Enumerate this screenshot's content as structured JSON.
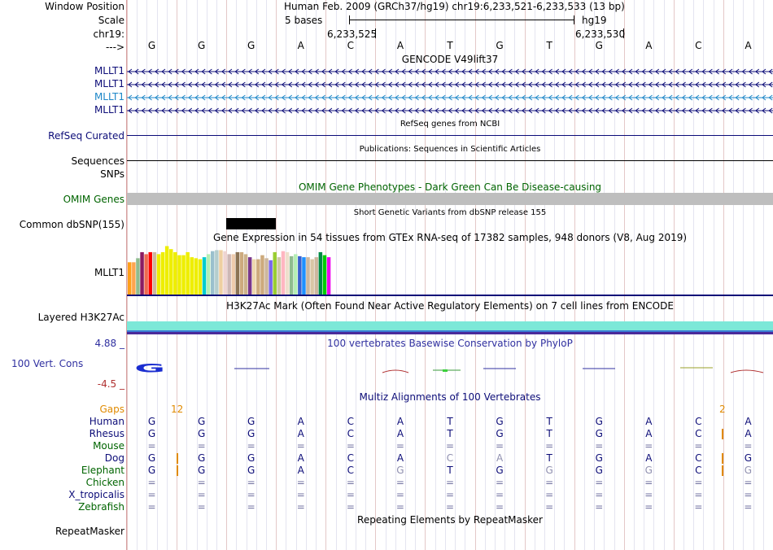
{
  "header": {
    "window_position_label": "Window Position",
    "scale_label": "Scale",
    "chrom_label": "chr19:",
    "strand_label": "--->",
    "title": "Human Feb. 2009 (GRCh37/hg19)   chr19:6,233,521-6,233,533 (13 bp)",
    "scale_text": "5 bases",
    "assembly": "hg19",
    "coord_left": "6,233,525",
    "coord_right": "6,233,530"
  },
  "bases": [
    "G",
    "G",
    "G",
    "A",
    "C",
    "A",
    "T",
    "G",
    "T",
    "G",
    "A",
    "C",
    "A"
  ],
  "gencode": {
    "title": "GENCODE V49lift37",
    "transcripts": [
      {
        "label": "MLLT1",
        "color": "#0c0c78"
      },
      {
        "label": "MLLT1",
        "color": "#0c0c78"
      },
      {
        "label": "MLLT1",
        "color": "#1d87c8"
      },
      {
        "label": "MLLT1",
        "color": "#0c0c78"
      }
    ]
  },
  "refseq": {
    "title": "RefSeq genes from NCBI",
    "label": "RefSeq Curated"
  },
  "publications": {
    "title": "Publications: Sequences in Scientific Articles",
    "label": "Sequences"
  },
  "snps_label": "SNPs",
  "omim": {
    "title": "OMIM Gene Phenotypes - Dark Green Can Be Disease-causing",
    "label": "OMIM Genes"
  },
  "dbsnp": {
    "title": "Short Genetic Variants from dbSNP release 155",
    "label": "Common dbSNP(155)"
  },
  "gtex": {
    "title": "Gene Expression in 54 tissues from GTEx RNA-seq of 17382 samples, 948 donors (V8, Aug 2019)",
    "label": "MLLT1",
    "bars": [
      {
        "color": "#ff9f1a",
        "h": 0.64
      },
      {
        "color": "#ffa54f",
        "h": 0.64
      },
      {
        "color": "#8fbc8f",
        "h": 0.72
      },
      {
        "color": "#8b1c62",
        "h": 0.84
      },
      {
        "color": "#ee6a50",
        "h": 0.8
      },
      {
        "color": "#ff0000",
        "h": 0.84
      },
      {
        "color": "#cdb79e",
        "h": 0.84
      },
      {
        "color": "#eeee00",
        "h": 0.8
      },
      {
        "color": "#eeee00",
        "h": 0.84
      },
      {
        "color": "#eeee00",
        "h": 0.96
      },
      {
        "color": "#eeee00",
        "h": 0.9
      },
      {
        "color": "#eeee00",
        "h": 0.84
      },
      {
        "color": "#eeee00",
        "h": 0.78
      },
      {
        "color": "#eeee00",
        "h": 0.78
      },
      {
        "color": "#eeee00",
        "h": 0.84
      },
      {
        "color": "#eeee00",
        "h": 0.74
      },
      {
        "color": "#eeee00",
        "h": 0.72
      },
      {
        "color": "#eeee00",
        "h": 0.7
      },
      {
        "color": "#00cdcd",
        "h": 0.74
      },
      {
        "color": "#b4eeb4",
        "h": 0.8
      },
      {
        "color": "#9ac0cd",
        "h": 0.86
      },
      {
        "color": "#b4cdcd",
        "h": 0.88
      },
      {
        "color": "#eecfa1",
        "h": 0.88
      },
      {
        "color": "#eed5d2",
        "h": 0.86
      },
      {
        "color": "#cdb7b5",
        "h": 0.8
      },
      {
        "color": "#eecbad",
        "h": 0.8
      },
      {
        "color": "#8b7355",
        "h": 0.84
      },
      {
        "color": "#cdaa7d",
        "h": 0.84
      },
      {
        "color": "#cdb38b",
        "h": 0.8
      },
      {
        "color": "#7a378b",
        "h": 0.74
      },
      {
        "color": "#eed8ae",
        "h": 0.7
      },
      {
        "color": "#cdaa7d",
        "h": 0.7
      },
      {
        "color": "#cdaa7d",
        "h": 0.78
      },
      {
        "color": "#cdb79e",
        "h": 0.72
      },
      {
        "color": "#7a67ee",
        "h": 0.68
      },
      {
        "color": "#9acd32",
        "h": 0.84
      },
      {
        "color": "#cdc9a5",
        "h": 0.74
      },
      {
        "color": "#ffb6c1",
        "h": 0.86
      },
      {
        "color": "#eedfcc",
        "h": 0.84
      },
      {
        "color": "#8fbc8f",
        "h": 0.76
      },
      {
        "color": "#b4eeb4",
        "h": 0.8
      },
      {
        "color": "#3a5fcd",
        "h": 0.76
      },
      {
        "color": "#1e90ff",
        "h": 0.74
      },
      {
        "color": "#cdb79e",
        "h": 0.74
      },
      {
        "color": "#d9c6a5",
        "h": 0.7
      },
      {
        "color": "#cdb79e",
        "h": 0.74
      },
      {
        "color": "#008b45",
        "h": 0.84
      },
      {
        "color": "#00cd00",
        "h": 0.78
      },
      {
        "color": "#ee00ee",
        "h": 0.74
      }
    ]
  },
  "h3k27ac": {
    "title": "H3K27Ac Mark (Often Found Near Active Regulatory Elements) on 7 cell lines from ENCODE",
    "label": "Layered H3K27Ac"
  },
  "phylop": {
    "title": "100 vertebrates Basewise Conservation by PhyloP",
    "label": "100 Vert. Cons",
    "max_label": "4.88 _",
    "min_label": "-4.5 _"
  },
  "multiz": {
    "title": "Multiz Alignments of 100 Vertebrates",
    "gaps_label": "Gaps",
    "gap_left": "12",
    "gap_right": "2",
    "species": [
      {
        "name": "Human",
        "color": "#0c0c78",
        "bases": [
          "G",
          "G",
          "G",
          "A",
          "C",
          "A",
          "T",
          "G",
          "T",
          "G",
          "A",
          "C",
          "A"
        ]
      },
      {
        "name": "Rhesus",
        "color": "#0c0c78",
        "bases": [
          "G",
          "G",
          "G",
          "A",
          "C",
          "A",
          "T",
          "G",
          "T",
          "G",
          "A",
          "C",
          "A"
        ]
      },
      {
        "name": "Mouse",
        "color": "#006400",
        "bases": [
          "=",
          "=",
          "=",
          "=",
          "=",
          "=",
          "=",
          "=",
          "=",
          "=",
          "=",
          "=",
          "="
        ]
      },
      {
        "name": "Dog",
        "color": "#0c0c78",
        "bases": [
          "G",
          "G",
          "G",
          "A",
          "C",
          "A",
          "C",
          "A",
          "T",
          "G",
          "A",
          "C",
          "G"
        ]
      },
      {
        "name": "Elephant",
        "color": "#006400",
        "bases": [
          "G",
          "G",
          "G",
          "A",
          "C",
          "G",
          "T",
          "G",
          "G",
          "G",
          "G",
          "C",
          "G"
        ]
      },
      {
        "name": "Chicken",
        "color": "#006400",
        "bases": [
          "=",
          "=",
          "=",
          "=",
          "=",
          "=",
          "=",
          "=",
          "=",
          "=",
          "=",
          "=",
          "="
        ]
      },
      {
        "name": "X_tropicalis",
        "color": "#0c0c78",
        "bases": [
          "=",
          "=",
          "=",
          "=",
          "=",
          "=",
          "=",
          "=",
          "=",
          "=",
          "=",
          "=",
          "="
        ]
      },
      {
        "name": "Zebrafish",
        "color": "#006400",
        "bases": [
          "=",
          "=",
          "=",
          "=",
          "=",
          "=",
          "=",
          "=",
          "=",
          "=",
          "=",
          "=",
          "="
        ]
      }
    ]
  },
  "repeatmasker": {
    "title": "Repeating Elements by RepeatMasker",
    "label": "RepeatMasker"
  },
  "colors": {
    "track_label": "#0c0c78",
    "omim_green": "#006400",
    "gaps_orange": "#e08a00",
    "phylop_blue": "#3030a0",
    "phylop_red": "#b03030"
  }
}
